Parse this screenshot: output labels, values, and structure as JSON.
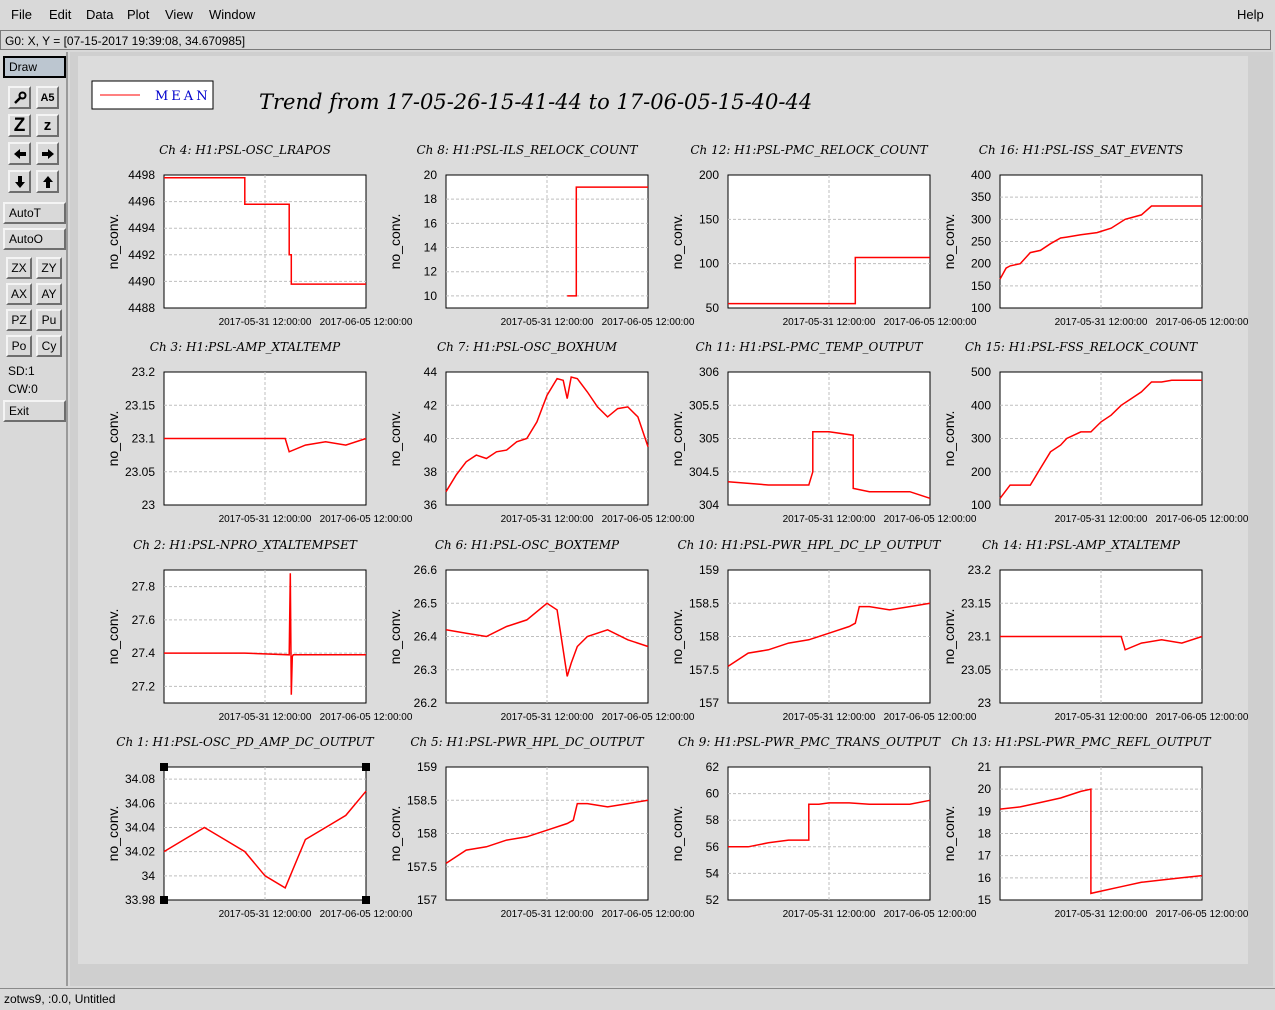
{
  "menu": {
    "items": [
      "File",
      "Edit",
      "Data",
      "Plot",
      "View",
      "Window"
    ],
    "help": "Help"
  },
  "status_top": "G0: X, Y = [07-15-2017 19:39:08, 34.670985]",
  "toolbar": {
    "draw": "Draw",
    "icon_rows": [
      [
        "wrench-icon",
        "zoom-text-icon"
      ],
      [
        "zoom-in-z-icon",
        "zoom-out-z-icon"
      ],
      [
        "arrow-left-icon",
        "arrow-right-icon"
      ],
      [
        "arrow-down-icon",
        "arrow-up-icon"
      ]
    ],
    "zoom_in_z": "Z",
    "zoom_out_z": "z",
    "zoom_text": "A5",
    "autot": "AutoT",
    "autoo": "AutoO",
    "pairs": [
      [
        "ZX",
        "ZY"
      ],
      [
        "AX",
        "AY"
      ],
      [
        "PZ",
        "Pu"
      ],
      [
        "Po",
        "Cy"
      ]
    ],
    "sd": "SD:1",
    "cw": "CW:0",
    "exit": "Exit"
  },
  "canvas": {
    "legend_label": "MEAN",
    "trend_title": "Trend from 17-05-26-15-41-44 to 17-06-05-15-40-44",
    "trace_color": "#ff0000"
  },
  "status_bottom": "zotws9, :0.0, Untitled",
  "chart_data": [
    {
      "type": "line",
      "title": "Ch 4: H1:PSL-OSC_LRAPOS",
      "ylabel": "no_conv.",
      "yticks": [
        "4498",
        "4496",
        "4494",
        "4492",
        "4490",
        "4488"
      ],
      "ylim": [
        4488,
        4498
      ],
      "xticks": [
        "2017-05-31 12:00:00",
        "2017-06-05 12:00:00"
      ],
      "series": [
        {
          "x": [
            0,
            0.4,
            0.4,
            0.62,
            0.62,
            0.63,
            0.63,
            0.64,
            0.64,
            1
          ],
          "y": [
            4497.8,
            4497.8,
            4495.8,
            4495.8,
            4492,
            4492,
            4489.8,
            4489.8,
            4489.8,
            4489.8
          ]
        }
      ]
    },
    {
      "type": "line",
      "title": "Ch 8: H1:PSL-ILS_RELOCK_COUNT",
      "ylabel": "no_conv.",
      "yticks": [
        "20",
        "18",
        "16",
        "14",
        "12",
        "10"
      ],
      "ylim": [
        9,
        20
      ],
      "xticks": [
        "2017-05-31 12:00:00",
        "2017-06-05 12:00:00"
      ],
      "series": [
        {
          "x": [
            0.6,
            0.63,
            0.63,
            0.645,
            0.645,
            1
          ],
          "y": [
            10,
            10,
            10,
            10,
            19,
            19
          ]
        }
      ]
    },
    {
      "type": "line",
      "title": "Ch 12: H1:PSL-PMC_RELOCK_COUNT",
      "ylabel": "no_conv.",
      "yticks": [
        "200",
        "150",
        "100",
        "50"
      ],
      "ylim": [
        50,
        200
      ],
      "xticks": [
        "2017-05-31 12:00:00",
        "2017-06-05 12:00:00"
      ],
      "series": [
        {
          "x": [
            0,
            0.63,
            0.63,
            1
          ],
          "y": [
            55,
            55,
            107,
            107
          ]
        }
      ]
    },
    {
      "type": "line",
      "title": "Ch 16: H1:PSL-ISS_SAT_EVENTS",
      "ylabel": "no_conv.",
      "yticks": [
        "400",
        "350",
        "300",
        "250",
        "200",
        "150",
        "100"
      ],
      "ylim": [
        100,
        400
      ],
      "xticks": [
        "2017-05-31 12:00:00",
        "2017-06-05 12:00:00"
      ],
      "series": [
        {
          "x": [
            0,
            0.03,
            0.05,
            0.1,
            0.15,
            0.2,
            0.25,
            0.3,
            0.33,
            0.4,
            0.48,
            0.55,
            0.62,
            0.7,
            0.75,
            0.8,
            1
          ],
          "y": [
            165,
            190,
            195,
            200,
            225,
            230,
            245,
            258,
            260,
            265,
            270,
            280,
            300,
            310,
            330,
            330,
            330
          ]
        }
      ]
    },
    {
      "type": "line",
      "title": "Ch 3: H1:PSL-AMP_XTALTEMP",
      "ylabel": "no_conv.",
      "yticks": [
        "23.2",
        "23.15",
        "23.1",
        "23.05",
        "23"
      ],
      "ylim": [
        23,
        23.2
      ],
      "xticks": [
        "2017-05-31 12:00:00",
        "2017-06-05 12:00:00"
      ],
      "series": [
        {
          "x": [
            0,
            0.2,
            0.4,
            0.55,
            0.6,
            0.62,
            0.7,
            0.8,
            0.9,
            1
          ],
          "y": [
            23.1,
            23.1,
            23.1,
            23.1,
            23.1,
            23.08,
            23.09,
            23.095,
            23.09,
            23.1
          ]
        }
      ]
    },
    {
      "type": "line",
      "title": "Ch 7: H1:PSL-OSC_BOXHUM",
      "ylabel": "no_conv.",
      "yticks": [
        "44",
        "42",
        "40",
        "38",
        "36"
      ],
      "ylim": [
        36,
        44
      ],
      "xticks": [
        "2017-05-31 12:00:00",
        "2017-06-05 12:00:00"
      ],
      "series": [
        {
          "x": [
            0,
            0.05,
            0.1,
            0.15,
            0.2,
            0.25,
            0.3,
            0.35,
            0.4,
            0.45,
            0.5,
            0.55,
            0.58,
            0.6,
            0.62,
            0.65,
            0.7,
            0.75,
            0.8,
            0.85,
            0.9,
            0.95,
            1
          ],
          "y": [
            36.8,
            37.8,
            38.6,
            39,
            38.8,
            39.2,
            39.3,
            39.8,
            40,
            41,
            42.6,
            43.6,
            43.5,
            42.4,
            43.7,
            43.6,
            42.8,
            41.9,
            41.3,
            41.8,
            41.9,
            41.3,
            39.5
          ]
        }
      ]
    },
    {
      "type": "line",
      "title": "Ch 11: H1:PSL-PMC_TEMP_OUTPUT",
      "ylabel": "no_conv.",
      "yticks": [
        "306",
        "305.5",
        "305",
        "304.5",
        "304"
      ],
      "ylim": [
        304,
        306
      ],
      "xticks": [
        "2017-05-31 12:00:00",
        "2017-06-05 12:00:00"
      ],
      "series": [
        {
          "x": [
            0,
            0.2,
            0.4,
            0.42,
            0.42,
            0.5,
            0.62,
            0.62,
            0.7,
            0.8,
            0.9,
            1
          ],
          "y": [
            304.35,
            304.3,
            304.3,
            304.5,
            305.1,
            305.1,
            305.05,
            304.25,
            304.2,
            304.2,
            304.2,
            304.1
          ]
        }
      ]
    },
    {
      "type": "line",
      "title": "Ch 15: H1:PSL-FSS_RELOCK_COUNT",
      "ylabel": "no_conv.",
      "yticks": [
        "500",
        "400",
        "300",
        "200",
        "100"
      ],
      "ylim": [
        100,
        500
      ],
      "xticks": [
        "2017-05-31 12:00:00",
        "2017-06-05 12:00:00"
      ],
      "series": [
        {
          "x": [
            0,
            0.05,
            0.15,
            0.2,
            0.25,
            0.3,
            0.33,
            0.4,
            0.45,
            0.5,
            0.55,
            0.6,
            0.65,
            0.7,
            0.75,
            0.8,
            0.85,
            0.9,
            1
          ],
          "y": [
            120,
            160,
            160,
            210,
            260,
            280,
            300,
            320,
            320,
            350,
            370,
            400,
            420,
            440,
            470,
            470,
            475,
            475,
            475
          ]
        }
      ]
    },
    {
      "type": "line",
      "title": "Ch 2: H1:PSL-NPRO_XTALTEMPSET",
      "ylabel": "no_conv.",
      "yticks": [
        "27.8",
        "27.6",
        "27.4",
        "27.2"
      ],
      "ylim": [
        27.1,
        27.9
      ],
      "xticks": [
        "2017-05-31 12:00:00",
        "2017-06-05 12:00:00"
      ],
      "series": [
        {
          "x": [
            0,
            0.2,
            0.4,
            0.62,
            0.625,
            0.63,
            0.635,
            0.64,
            0.8,
            1
          ],
          "y": [
            27.4,
            27.4,
            27.4,
            27.39,
            27.88,
            27.15,
            27.38,
            27.39,
            27.39,
            27.39
          ]
        }
      ]
    },
    {
      "type": "line",
      "title": "Ch 6: H1:PSL-OSC_BOXTEMP",
      "ylabel": "no_conv.",
      "yticks": [
        "26.6",
        "26.5",
        "26.4",
        "26.3",
        "26.2"
      ],
      "ylim": [
        26.2,
        26.6
      ],
      "xticks": [
        "2017-05-31 12:00:00",
        "2017-06-05 12:00:00"
      ],
      "series": [
        {
          "x": [
            0,
            0.1,
            0.2,
            0.3,
            0.4,
            0.5,
            0.55,
            0.6,
            0.62,
            0.65,
            0.7,
            0.8,
            0.9,
            1
          ],
          "y": [
            26.42,
            26.41,
            26.4,
            26.43,
            26.45,
            26.5,
            26.48,
            26.28,
            26.32,
            26.37,
            26.4,
            26.42,
            26.39,
            26.37
          ]
        }
      ]
    },
    {
      "type": "line",
      "title": "Ch 10: H1:PSL-PWR_HPL_DC_LP_OUTPUT",
      "ylabel": "no_conv.",
      "yticks": [
        "159",
        "158.5",
        "158",
        "157.5",
        "157"
      ],
      "ylim": [
        157,
        159
      ],
      "xticks": [
        "2017-05-31 12:00:00",
        "2017-06-05 12:00:00"
      ],
      "series": [
        {
          "x": [
            0,
            0.1,
            0.2,
            0.3,
            0.4,
            0.5,
            0.6,
            0.63,
            0.65,
            0.7,
            0.8,
            0.9,
            1
          ],
          "y": [
            157.55,
            157.75,
            157.8,
            157.9,
            157.95,
            158.05,
            158.15,
            158.2,
            158.45,
            158.45,
            158.4,
            158.45,
            158.5
          ]
        }
      ]
    },
    {
      "type": "line",
      "title": "Ch 14: H1:PSL-AMP_XTALTEMP",
      "ylabel": "no_conv.",
      "yticks": [
        "23.2",
        "23.15",
        "23.1",
        "23.05",
        "23"
      ],
      "ylim": [
        23,
        23.2
      ],
      "xticks": [
        "2017-05-31 12:00:00",
        "2017-06-05 12:00:00"
      ],
      "series": [
        {
          "x": [
            0,
            0.2,
            0.4,
            0.55,
            0.6,
            0.62,
            0.7,
            0.8,
            0.9,
            1
          ],
          "y": [
            23.1,
            23.1,
            23.1,
            23.1,
            23.1,
            23.08,
            23.09,
            23.095,
            23.09,
            23.1
          ]
        }
      ]
    },
    {
      "type": "line",
      "title": "Ch 1: H1:PSL-OSC_PD_AMP_DC_OUTPUT",
      "ylabel": "no_conv.",
      "yticks": [
        "34.08",
        "34.06",
        "34.04",
        "34.02",
        "34",
        "33.98"
      ],
      "ylim": [
        33.98,
        34.09
      ],
      "xticks": [
        "2017-05-31 12:00:00",
        "2017-06-05 12:00:00"
      ],
      "series": [
        {
          "x": [
            0,
            0.1,
            0.2,
            0.3,
            0.4,
            0.5,
            0.6,
            0.7,
            0.8,
            0.9,
            1
          ],
          "y": [
            34.02,
            34.03,
            34.04,
            34.03,
            34.02,
            34.0,
            33.99,
            34.03,
            34.04,
            34.05,
            34.07
          ]
        }
      ]
    },
    {
      "type": "line",
      "title": "Ch 5: H1:PSL-PWR_HPL_DC_OUTPUT",
      "ylabel": "no_conv.",
      "yticks": [
        "159",
        "158.5",
        "158",
        "157.5",
        "157"
      ],
      "ylim": [
        157,
        159
      ],
      "xticks": [
        "2017-05-31 12:00:00",
        "2017-06-05 12:00:00"
      ],
      "series": [
        {
          "x": [
            0,
            0.1,
            0.2,
            0.3,
            0.4,
            0.5,
            0.6,
            0.63,
            0.65,
            0.7,
            0.8,
            0.9,
            1
          ],
          "y": [
            157.55,
            157.75,
            157.8,
            157.9,
            157.95,
            158.05,
            158.15,
            158.2,
            158.45,
            158.45,
            158.4,
            158.45,
            158.5
          ]
        }
      ]
    },
    {
      "type": "line",
      "title": "Ch 9: H1:PSL-PWR_PMC_TRANS_OUTPUT",
      "ylabel": "no_conv.",
      "yticks": [
        "62",
        "60",
        "58",
        "56",
        "54",
        "52"
      ],
      "ylim": [
        52,
        62
      ],
      "xticks": [
        "2017-05-31 12:00:00",
        "2017-06-05 12:00:00"
      ],
      "series": [
        {
          "x": [
            0,
            0.1,
            0.2,
            0.3,
            0.38,
            0.4,
            0.4,
            0.45,
            0.5,
            0.6,
            0.7,
            0.8,
            0.9,
            1
          ],
          "y": [
            56,
            56,
            56.3,
            56.5,
            56.5,
            56.5,
            59.2,
            59.2,
            59.3,
            59.3,
            59.2,
            59.2,
            59.2,
            59.5
          ]
        }
      ]
    },
    {
      "type": "line",
      "title": "Ch 13: H1:PSL-PWR_PMC_REFL_OUTPUT",
      "ylabel": "no_conv.",
      "yticks": [
        "21",
        "20",
        "19",
        "18",
        "17",
        "16",
        "15"
      ],
      "ylim": [
        15,
        21
      ],
      "xticks": [
        "2017-05-31 12:00:00",
        "2017-06-05 12:00:00"
      ],
      "series": [
        {
          "x": [
            0,
            0.1,
            0.2,
            0.3,
            0.4,
            0.45,
            0.45,
            0.5,
            0.6,
            0.7,
            0.8,
            0.9,
            1
          ],
          "y": [
            19.1,
            19.2,
            19.4,
            19.6,
            19.9,
            20.0,
            15.3,
            15.4,
            15.6,
            15.8,
            15.9,
            16.0,
            16.1
          ]
        }
      ]
    }
  ]
}
